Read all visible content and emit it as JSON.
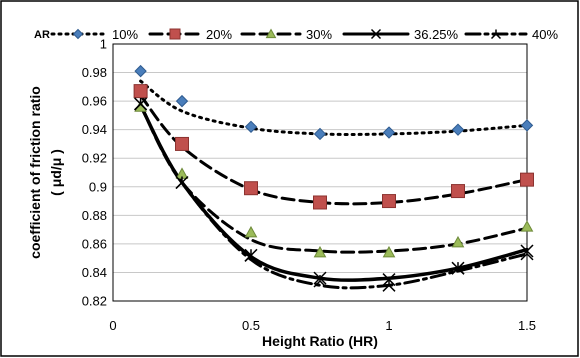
{
  "chart_data": {
    "type": "line",
    "xlabel": "Height Ratio (HR)",
    "ylabel_line1": "coefficient of friction ratio",
    "ylabel_line2": "( μd/μ )",
    "xlim": [
      0,
      1.5
    ],
    "ylim": [
      0.82,
      1.0
    ],
    "xticks": [
      "0",
      "0.5",
      "1",
      "1.5"
    ],
    "yticks": [
      "0.82",
      "0.84",
      "0.86",
      "0.88",
      "0.9",
      "0.92",
      "0.94",
      "0.96",
      "0.98",
      "1"
    ],
    "legend_title": "AR",
    "legend_position": "top",
    "grid": "horizontal",
    "x": [
      0.1,
      0.25,
      0.5,
      0.75,
      1.0,
      1.25,
      1.5
    ],
    "series": [
      {
        "name": "10%",
        "marker": "diamond",
        "line": "dotted",
        "marker_color": "#4a7ebb",
        "values": [
          0.981,
          0.96,
          0.942,
          0.937,
          0.938,
          0.94,
          0.943
        ],
        "curve": [
          0.974,
          0.953,
          0.941,
          0.937,
          0.937,
          0.939,
          0.943
        ]
      },
      {
        "name": "20%",
        "marker": "square",
        "line": "dashed",
        "marker_color": "#c0504d",
        "values": [
          0.967,
          0.93,
          0.899,
          0.889,
          0.89,
          0.897,
          0.905
        ],
        "curve": [
          0.964,
          0.928,
          0.898,
          0.889,
          0.889,
          0.895,
          0.905
        ]
      },
      {
        "name": "30%",
        "marker": "triangle",
        "line": "dashed",
        "marker_color": "#9bbb59",
        "values": [
          0.956,
          0.909,
          0.868,
          0.854,
          0.854,
          0.861,
          0.872
        ],
        "curve": [
          0.957,
          0.903,
          0.863,
          0.855,
          0.855,
          0.86,
          0.871
        ]
      },
      {
        "name": "36.25%",
        "marker": "cross",
        "line": "solid",
        "marker_color": "#000000",
        "values": [
          0.958,
          0.903,
          0.852,
          0.836,
          0.835,
          0.843,
          0.855
        ],
        "curve": [
          0.957,
          0.903,
          0.851,
          0.836,
          0.836,
          0.843,
          0.856
        ]
      },
      {
        "name": "40%",
        "marker": "asterisk",
        "line": "dashdot",
        "marker_color": "#000000",
        "values": [
          0.958,
          0.903,
          0.852,
          0.834,
          0.831,
          0.843,
          0.853
        ],
        "curve": [
          0.957,
          0.903,
          0.849,
          0.831,
          0.831,
          0.841,
          0.853
        ]
      }
    ]
  }
}
